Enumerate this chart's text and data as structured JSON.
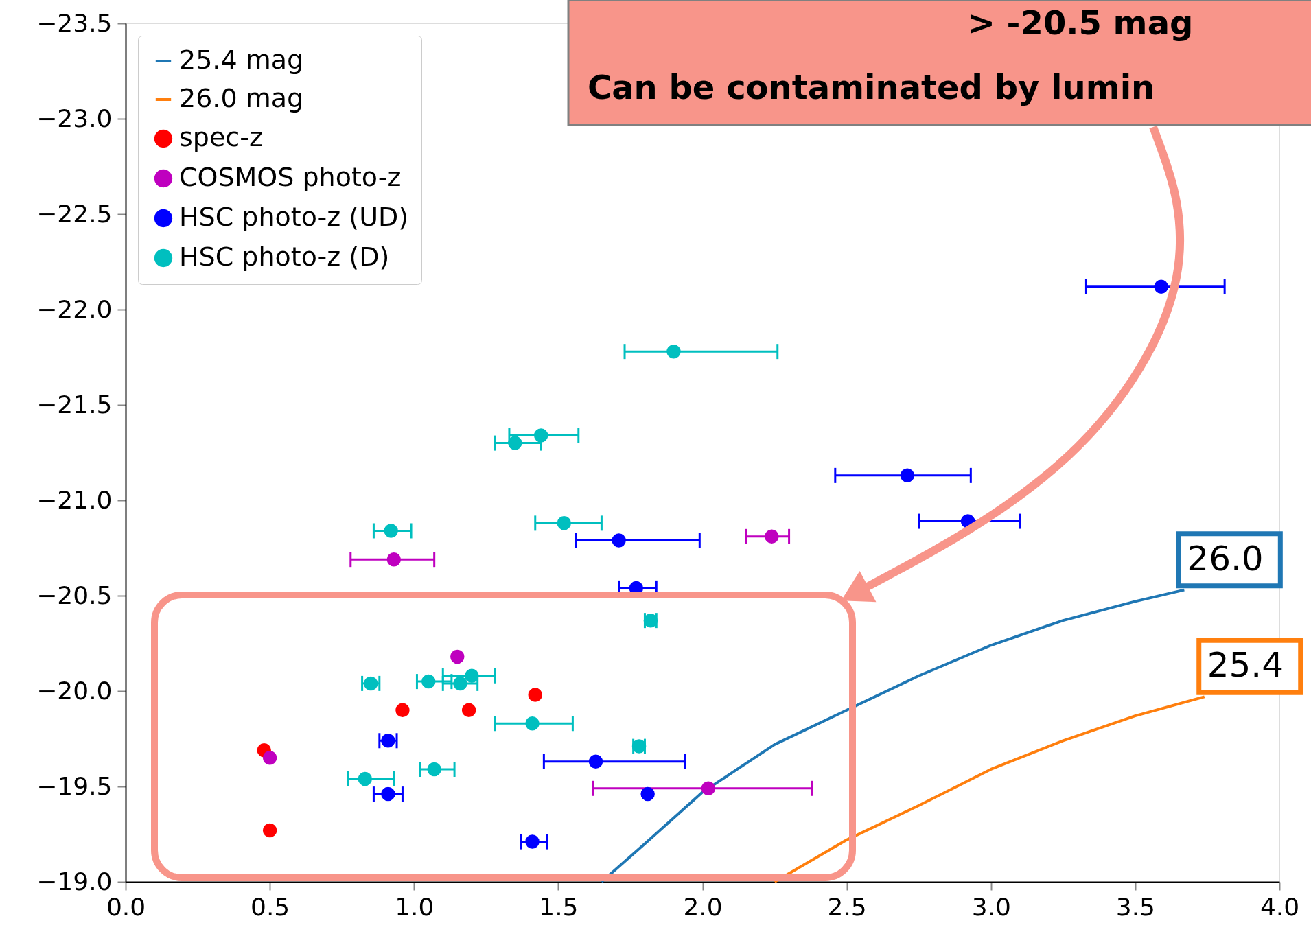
{
  "chart_data": {
    "type": "scatter",
    "xlim": [
      0.0,
      4.0
    ],
    "xticks": [
      {
        "value": 0.0,
        "label": "0.0"
      },
      0.5,
      {
        "value": 1.0,
        "label": "1.0"
      },
      1.5,
      {
        "value": 2.0,
        "label": "2.0"
      },
      2.5,
      {
        "value": 3.0,
        "label": "3.0"
      },
      3.5,
      {
        "value": 4.0,
        "label": "4.0"
      }
    ],
    "ylim": [
      -19.0,
      -23.5
    ],
    "yticks": [
      {
        "value": -23.5,
        "label": "−23.5"
      },
      {
        "value": -23.0,
        "label": "−23.0"
      },
      {
        "value": -22.5,
        "label": "−22.5"
      },
      {
        "value": -22.0,
        "label": "−22.0"
      },
      {
        "value": -21.5,
        "label": "−21.5"
      },
      {
        "value": -21.0,
        "label": "−21.0"
      },
      {
        "value": -20.5,
        "label": "−20.5"
      },
      {
        "value": -20.0,
        "label": "−20.0"
      },
      {
        "value": -19.5,
        "label": "−19.5"
      },
      {
        "value": -19.0,
        "label": "−19.0"
      }
    ],
    "grid": false,
    "legend": "top left",
    "annotations": [
      "> -20.5 mag",
      "Can be contaminated by lumin",
      {
        "text": "26.0",
        "x": 3.67,
        "y": -20.53
      },
      {
        "text": "25.4",
        "x": 3.74,
        "y": -19.97
      }
    ],
    "series": [
      {
        "name": "25.4 mag",
        "type": "line",
        "line_style": "solid",
        "color": "#1f77b4",
        "x": [
          1.65,
          1.8,
          2.0,
          2.25,
          2.5,
          2.75,
          3.0,
          3.25,
          3.5,
          3.67
        ],
        "values": [
          -19.0,
          -19.2,
          -19.47,
          -19.72,
          -19.9,
          -20.08,
          -20.24,
          -20.37,
          -20.47,
          -20.53
        ]
      },
      {
        "name": "26.0 mag",
        "type": "line",
        "line_style": "solid",
        "color": "#ff7f0e",
        "x": [
          2.25,
          2.5,
          2.75,
          3.0,
          3.25,
          3.5,
          3.74
        ],
        "values": [
          -19.0,
          -19.22,
          -19.4,
          -19.59,
          -19.74,
          -19.87,
          -19.97
        ]
      },
      {
        "name": "spec-z",
        "marker": "circle",
        "color": "#ff0000",
        "x": [
          0.48,
          0.5,
          0.96,
          1.19,
          1.42
        ],
        "values": [
          -19.69,
          -19.27,
          -19.9,
          -19.9,
          -19.98
        ]
      },
      {
        "name": "COSMOS photo-z",
        "marker": "circle",
        "color": "#bf00bf",
        "x": [
          0.5,
          1.15,
          2.02,
          0.93,
          2.24
        ],
        "values": [
          -19.65,
          -20.18,
          -19.49,
          -20.69,
          -20.81
        ],
        "xerrors": [
          null,
          null,
          [
            1.62,
            2.38
          ],
          [
            0.78,
            1.07
          ],
          [
            2.15,
            2.3
          ]
        ]
      },
      {
        "name": "HSC photo-z (UD)",
        "marker": "circle",
        "color": "#0000ff",
        "x": [
          3.59,
          2.71,
          2.92,
          1.71,
          1.77,
          0.91,
          1.63,
          0.91,
          1.81,
          1.41
        ],
        "values": [
          -22.12,
          -21.13,
          -20.89,
          -20.79,
          -20.54,
          -19.74,
          -19.63,
          -19.46,
          -19.46,
          -19.21
        ],
        "xerrors": [
          [
            3.33,
            3.81
          ],
          [
            2.46,
            2.93
          ],
          [
            2.75,
            3.1
          ],
          [
            1.56,
            1.99
          ],
          [
            1.71,
            1.84
          ],
          [
            0.88,
            0.94
          ],
          [
            1.45,
            1.94
          ],
          [
            0.86,
            0.96
          ],
          null,
          [
            1.37,
            1.46
          ]
        ]
      },
      {
        "name": "HSC photo-z (D)",
        "marker": "circle",
        "color": "#00bfbf",
        "x": [
          1.9,
          1.44,
          1.35,
          0.92,
          1.52,
          1.82,
          0.85,
          1.05,
          1.2,
          1.16,
          1.41,
          1.78,
          1.07,
          0.83
        ],
        "values": [
          -21.78,
          -21.34,
          -21.3,
          -20.84,
          -20.88,
          -20.37,
          -20.04,
          -20.05,
          -20.08,
          -20.04,
          -19.83,
          -19.71,
          -19.59,
          -19.54
        ],
        "xerrors": [
          [
            1.73,
            2.26
          ],
          [
            1.33,
            1.57
          ],
          [
            1.28,
            1.44
          ],
          [
            0.86,
            0.99
          ],
          [
            1.42,
            1.65
          ],
          [
            1.8,
            1.84
          ],
          [
            0.82,
            0.88
          ],
          [
            1.01,
            1.13
          ],
          [
            1.1,
            1.28
          ],
          [
            1.1,
            1.22
          ],
          [
            1.28,
            1.55
          ],
          [
            1.76,
            1.8
          ],
          [
            1.02,
            1.14
          ],
          [
            0.77,
            0.93
          ]
        ]
      }
    ]
  }
}
